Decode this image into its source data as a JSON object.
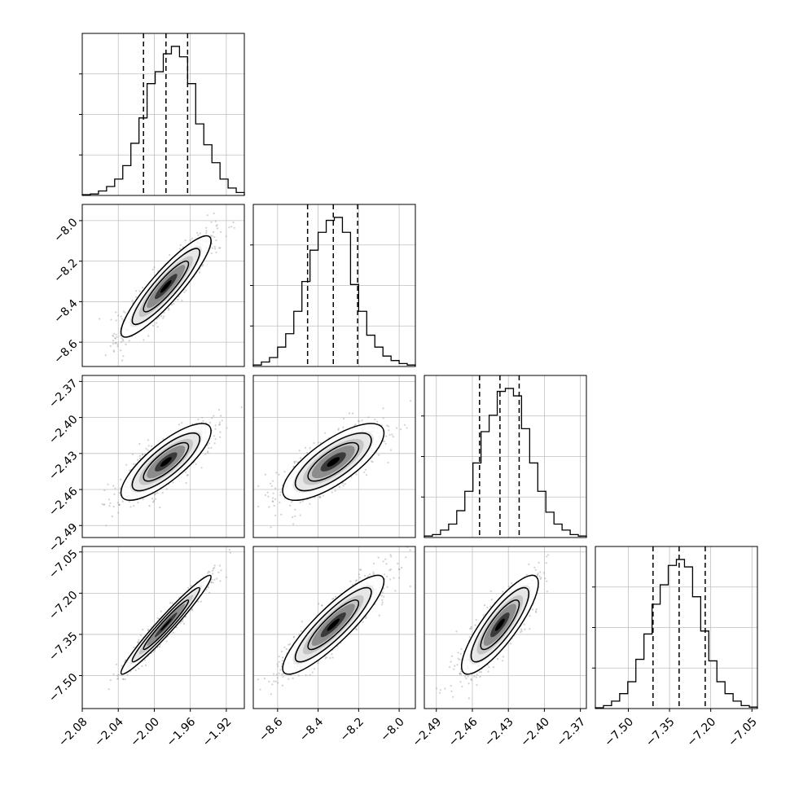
{
  "chart_data": {
    "type": "corner",
    "parameters": [
      {
        "range": [
          -2.08,
          -1.9
        ],
        "ticks": [
          -2.08,
          -2.04,
          -2.0,
          -1.96,
          -1.92
        ],
        "tick_labels": [
          "−2.08",
          "−2.04",
          "−2.00",
          "−1.96",
          "−1.92"
        ],
        "quantiles": [
          -2.012,
          -1.987,
          -1.963
        ],
        "mean": -1.987,
        "sd": 0.025
      },
      {
        "range": [
          -8.72,
          -7.92
        ],
        "ticks": [
          -8.6,
          -8.4,
          -8.2,
          -8.0
        ],
        "tick_labels": [
          "−8.6",
          "−8.4",
          "−8.2",
          "−8.0"
        ],
        "quantiles": [
          -8.452,
          -8.325,
          -8.205
        ],
        "mean": -8.325,
        "sd": 0.125
      },
      {
        "range": [
          -2.5,
          -2.365
        ],
        "ticks": [
          -2.49,
          -2.46,
          -2.43,
          -2.4,
          -2.37
        ],
        "tick_labels": [
          "−2.49",
          "−2.46",
          "−2.43",
          "−2.40",
          "−2.37"
        ],
        "quantiles": [
          -2.454,
          -2.437,
          -2.421
        ],
        "mean": -2.437,
        "sd": 0.016
      },
      {
        "range": [
          -7.62,
          -7.03
        ],
        "ticks": [
          -7.5,
          -7.35,
          -7.2,
          -7.05
        ],
        "tick_labels": [
          "−7.50",
          "−7.35",
          "−7.20",
          "−7.05"
        ],
        "quantiles": [
          -7.41,
          -7.315,
          -7.22
        ],
        "mean": -7.315,
        "sd": 0.09
      }
    ],
    "histograms": [
      [
        0.005,
        0.01,
        0.03,
        0.06,
        0.11,
        0.2,
        0.35,
        0.52,
        0.75,
        0.83,
        0.95,
        1.0,
        0.93,
        0.75,
        0.48,
        0.34,
        0.22,
        0.11,
        0.05,
        0.02
      ],
      [
        0.01,
        0.03,
        0.06,
        0.13,
        0.22,
        0.37,
        0.57,
        0.78,
        0.9,
        0.98,
        1.0,
        0.9,
        0.55,
        0.37,
        0.21,
        0.13,
        0.07,
        0.04,
        0.02,
        0.01
      ],
      [
        0.01,
        0.02,
        0.05,
        0.09,
        0.18,
        0.31,
        0.5,
        0.71,
        0.82,
        0.98,
        1.0,
        0.95,
        0.73,
        0.5,
        0.31,
        0.17,
        0.09,
        0.05,
        0.02,
        0.01
      ],
      [
        0.005,
        0.02,
        0.05,
        0.1,
        0.18,
        0.33,
        0.5,
        0.7,
        0.83,
        0.96,
        1.0,
        0.95,
        0.75,
        0.52,
        0.32,
        0.18,
        0.1,
        0.05,
        0.02,
        0.01
      ]
    ],
    "correlations": [
      {
        "x": 0,
        "y": 1,
        "rho": 0.9
      },
      {
        "x": 0,
        "y": 2,
        "rho": 0.8
      },
      {
        "x": 1,
        "y": 2,
        "rho": 0.75
      },
      {
        "x": 0,
        "y": 3,
        "rho": 0.97
      },
      {
        "x": 1,
        "y": 3,
        "rho": 0.88
      },
      {
        "x": 2,
        "y": 3,
        "rho": 0.84
      }
    ],
    "contour_levels_sigma": [
      1,
      1.5,
      2
    ],
    "grid": true,
    "colors": {
      "line": "#000000",
      "grid": "#bfbfbf",
      "points": "#9a9a9a",
      "density_dark": "#000000",
      "density_light": "#ffffff"
    }
  }
}
